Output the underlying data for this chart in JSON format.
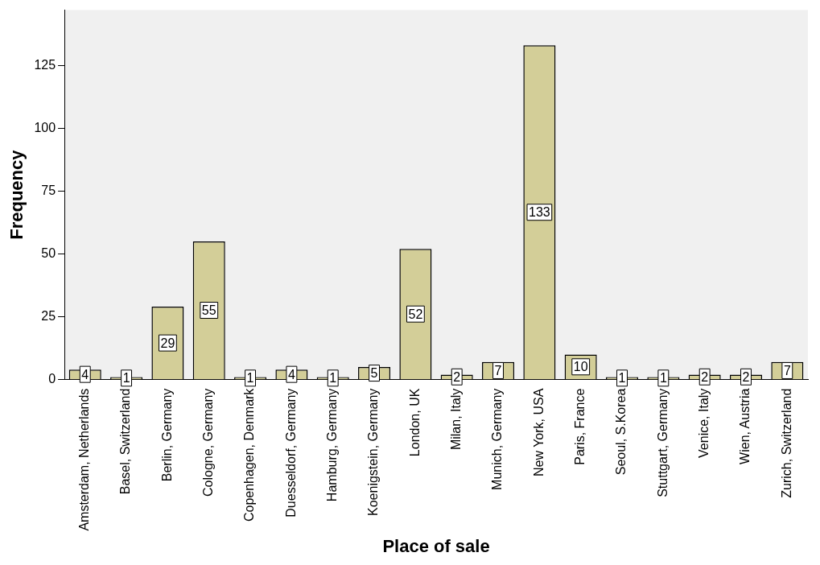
{
  "chart_data": {
    "type": "bar",
    "xlabel": "Place of sale",
    "ylabel": "Frequency",
    "categories": [
      "Amsterdam, Netherlands",
      "Basel, Switzerland",
      "Berlin, Germany",
      "Cologne, Germany",
      "Copenhagen, Denmark",
      "Duesseldorf, Germany",
      "Hamburg, Germany",
      "Koenigstein, Germany",
      "London, UK",
      "Milan, Italy",
      "Munich, Germany",
      "New York, USA",
      "Paris, France",
      "Seoul, S.Korea",
      "Stuttgart, Germany",
      "Venice, Italy",
      "Wien, Austria",
      "Zurich, Switzerland"
    ],
    "values": [
      4,
      1,
      29,
      55,
      1,
      4,
      1,
      5,
      52,
      2,
      7,
      133,
      10,
      1,
      1,
      2,
      2,
      7
    ],
    "color": "#d3ce98",
    "ylim": [
      0,
      147
    ],
    "yticks": [
      0,
      25,
      50,
      75,
      100,
      125
    ],
    "grid": false,
    "legend": false,
    "data_labels": true
  }
}
